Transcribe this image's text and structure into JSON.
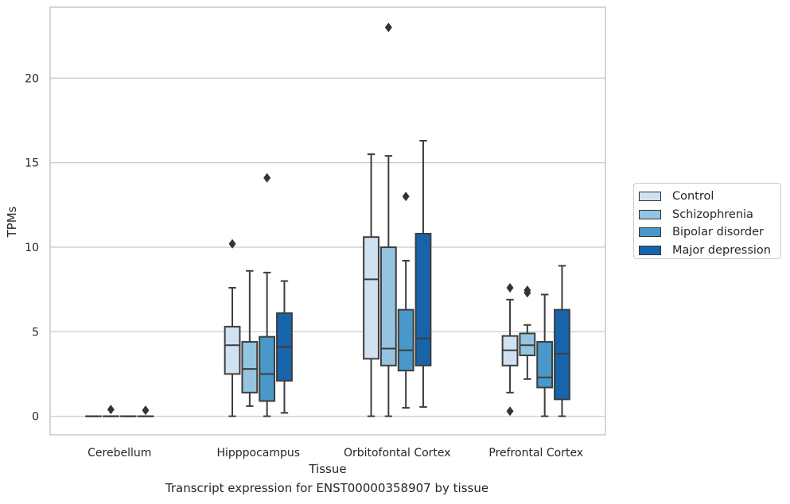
{
  "chart_data": {
    "type": "box",
    "xlabel": "Tissue",
    "ylabel": "TPMs",
    "caption": "Transcript expression for ENST00000358907 by tissue",
    "ylim": [
      -1.1,
      24.2
    ],
    "yticks": [
      0,
      5,
      10,
      15,
      20
    ],
    "grid": "horizontal",
    "legend_position": "right",
    "categories": [
      "Cerebellum",
      "Hipppocampus",
      "Orbitofontal Cortex",
      "Prefrontal Cortex"
    ],
    "series": [
      {
        "name": "Control",
        "color": "#d0e1f2",
        "boxes": [
          {
            "min": 0,
            "q1": 0,
            "median": 0,
            "q3": 0,
            "max": 0,
            "outliers": []
          },
          {
            "min": 0,
            "q1": 2.5,
            "median": 4.2,
            "q3": 5.3,
            "max": 7.6,
            "outliers": [
              10.2
            ]
          },
          {
            "min": 0,
            "q1": 3.4,
            "median": 8.1,
            "q3": 10.6,
            "max": 15.5,
            "outliers": []
          },
          {
            "min": 1.4,
            "q1": 3.0,
            "median": 3.9,
            "q3": 4.75,
            "max": 6.9,
            "outliers": [
              0.3,
              7.6
            ]
          }
        ]
      },
      {
        "name": "Schizophrenia",
        "color": "#94c4df",
        "boxes": [
          {
            "min": 0,
            "q1": 0,
            "median": 0,
            "q3": 0,
            "max": 0,
            "outliers": [
              0.4
            ]
          },
          {
            "min": 0.6,
            "q1": 1.4,
            "median": 2.8,
            "q3": 4.4,
            "max": 8.6,
            "outliers": []
          },
          {
            "min": 0,
            "q1": 3.0,
            "median": 4.0,
            "q3": 10.0,
            "max": 15.4,
            "outliers": [
              23.0
            ]
          },
          {
            "min": 2.2,
            "q1": 3.6,
            "median": 4.2,
            "q3": 4.9,
            "max": 5.4,
            "outliers": [
              7.3,
              7.45
            ]
          }
        ]
      },
      {
        "name": "Bipolar disorder",
        "color": "#4a98c9",
        "boxes": [
          {
            "min": 0,
            "q1": 0,
            "median": 0,
            "q3": 0,
            "max": 0,
            "outliers": []
          },
          {
            "min": 0,
            "q1": 0.9,
            "median": 2.5,
            "q3": 4.7,
            "max": 8.5,
            "outliers": [
              14.1
            ]
          },
          {
            "min": 0.5,
            "q1": 2.7,
            "median": 3.9,
            "q3": 6.3,
            "max": 9.2,
            "outliers": [
              13.0
            ]
          },
          {
            "min": 0,
            "q1": 1.7,
            "median": 2.3,
            "q3": 4.4,
            "max": 7.2,
            "outliers": []
          }
        ]
      },
      {
        "name": "Major depression",
        "color": "#1764ab",
        "boxes": [
          {
            "min": 0,
            "q1": 0,
            "median": 0,
            "q3": 0,
            "max": 0,
            "outliers": [
              0.35
            ]
          },
          {
            "min": 0.2,
            "q1": 2.1,
            "median": 4.1,
            "q3": 6.1,
            "max": 8.0,
            "outliers": []
          },
          {
            "min": 0.55,
            "q1": 3.0,
            "median": 4.6,
            "q3": 10.8,
            "max": 16.3,
            "outliers": []
          },
          {
            "min": 0,
            "q1": 1.0,
            "median": 3.7,
            "q3": 6.3,
            "max": 8.9,
            "outliers": []
          }
        ]
      }
    ]
  }
}
